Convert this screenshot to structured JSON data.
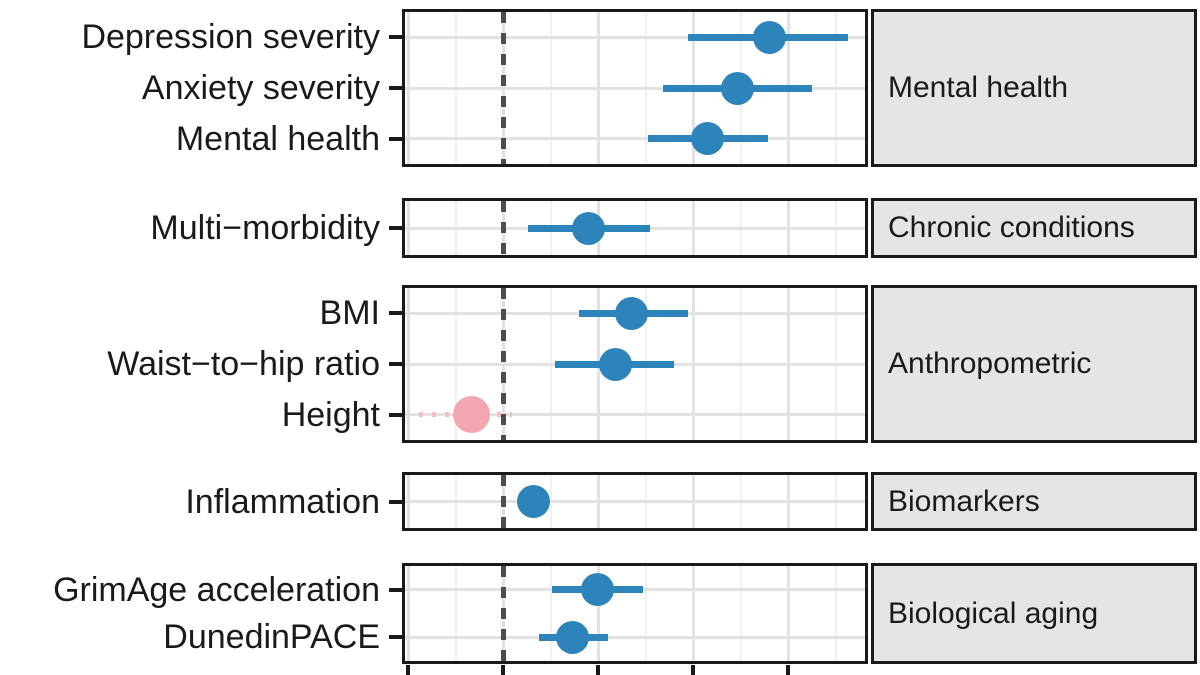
{
  "figure": {
    "kind": "forest-plot",
    "title": "",
    "reference_line": "dashed vertical line at 0",
    "panels": [
      {
        "facet_label": "Mental health",
        "rows": [
          {
            "label": "Depression severity",
            "estimate": 0.28,
            "ci_low": 0.195,
            "ci_high": 0.363,
            "style": "solid",
            "color_key": "blue"
          },
          {
            "label": "Anxiety severity",
            "estimate": 0.247,
            "ci_low": 0.168,
            "ci_high": 0.325,
            "style": "solid",
            "color_key": "blue"
          },
          {
            "label": "Mental health",
            "estimate": 0.215,
            "ci_low": 0.153,
            "ci_high": 0.279,
            "style": "solid",
            "color_key": "blue"
          }
        ]
      },
      {
        "facet_label": "Chronic conditions",
        "rows": [
          {
            "label": "Multi−morbidity",
            "estimate": 0.09,
            "ci_low": 0.026,
            "ci_high": 0.155,
            "style": "solid",
            "color_key": "blue"
          }
        ]
      },
      {
        "facet_label": "Anthropometric",
        "rows": [
          {
            "label": "BMI",
            "estimate": 0.135,
            "ci_low": 0.08,
            "ci_high": 0.195,
            "style": "solid",
            "color_key": "blue"
          },
          {
            "label": "Waist−to−hip ratio",
            "estimate": 0.118,
            "ci_low": 0.055,
            "ci_high": 0.18,
            "style": "solid",
            "color_key": "blue"
          },
          {
            "label": "Height",
            "estimate": -0.033,
            "ci_low": -0.088,
            "ci_high": 0.01,
            "style": "dotted",
            "color_key": "pink"
          }
        ]
      },
      {
        "facet_label": "Biomarkers",
        "rows": [
          {
            "label": "Inflammation",
            "estimate": 0.032,
            "ci_low": 0.016,
            "ci_high": 0.047,
            "style": "solid",
            "color_key": "blue"
          }
        ]
      },
      {
        "facet_label": "Biological aging",
        "rows": [
          {
            "label": "GrimAge acceleration",
            "estimate": 0.099,
            "ci_low": 0.052,
            "ci_high": 0.147,
            "style": "solid",
            "color_key": "blue"
          },
          {
            "label": "DunedinPACE",
            "estimate": 0.073,
            "ci_low": 0.038,
            "ci_high": 0.111,
            "style": "solid",
            "color_key": "blue"
          }
        ]
      }
    ]
  },
  "chart_data": {
    "type": "scatter",
    "subtype": "forest-plot (point estimates with horizontal confidence intervals, faceted rows)",
    "title": "",
    "xlabel": "",
    "ylabel": "",
    "x_axis": {
      "visible_tick_labels": false,
      "reference_line_x": 0,
      "major_gridlines_estimated": [
        -0.1,
        0.0,
        0.1,
        0.2,
        0.3
      ],
      "minor_gridlines_estimated": [
        -0.05,
        0.05,
        0.15,
        0.25,
        0.35
      ],
      "xlim_estimated": [
        -0.103,
        0.384
      ]
    },
    "legend": "none (color encodes significance: blue solid = significant, pink dotted = non-significant)",
    "groups": [
      {
        "facet": "Mental health",
        "points": [
          {
            "y_label": "Depression severity",
            "x": 0.28,
            "ci": [
              0.195,
              0.363
            ],
            "color": "blue"
          },
          {
            "y_label": "Anxiety severity",
            "x": 0.247,
            "ci": [
              0.168,
              0.325
            ],
            "color": "blue"
          },
          {
            "y_label": "Mental health",
            "x": 0.215,
            "ci": [
              0.153,
              0.279
            ],
            "color": "blue"
          }
        ]
      },
      {
        "facet": "Chronic conditions",
        "points": [
          {
            "y_label": "Multi−morbidity",
            "x": 0.09,
            "ci": [
              0.026,
              0.155
            ],
            "color": "blue"
          }
        ]
      },
      {
        "facet": "Anthropometric",
        "points": [
          {
            "y_label": "BMI",
            "x": 0.135,
            "ci": [
              0.08,
              0.195
            ],
            "color": "blue"
          },
          {
            "y_label": "Waist−to−hip ratio",
            "x": 0.118,
            "ci": [
              0.055,
              0.18
            ],
            "color": "blue"
          },
          {
            "y_label": "Height",
            "x": -0.033,
            "ci": [
              -0.088,
              0.01
            ],
            "color": "pink"
          }
        ]
      },
      {
        "facet": "Biomarkers",
        "points": [
          {
            "y_label": "Inflammation",
            "x": 0.032,
            "ci": [
              0.016,
              0.047
            ],
            "color": "blue"
          }
        ]
      },
      {
        "facet": "Biological aging",
        "points": [
          {
            "y_label": "GrimAge acceleration",
            "x": 0.099,
            "ci": [
              0.052,
              0.147
            ],
            "color": "blue"
          },
          {
            "y_label": "DunedinPACE",
            "x": 0.073,
            "ci": [
              0.038,
              0.111
            ],
            "color": "blue"
          }
        ]
      }
    ]
  },
  "colors": {
    "blue": "#2c84ba",
    "pink": "#f4a7b1",
    "pink_line": "#f6bdc5",
    "strip_bg": "#e5e5e5",
    "grid_major": "#e2e2e2",
    "grid_minor": "#f0f0f0",
    "reference_dash": "#4d4d4d",
    "border": "#1a1a1a",
    "text": "#1a1a1a"
  }
}
